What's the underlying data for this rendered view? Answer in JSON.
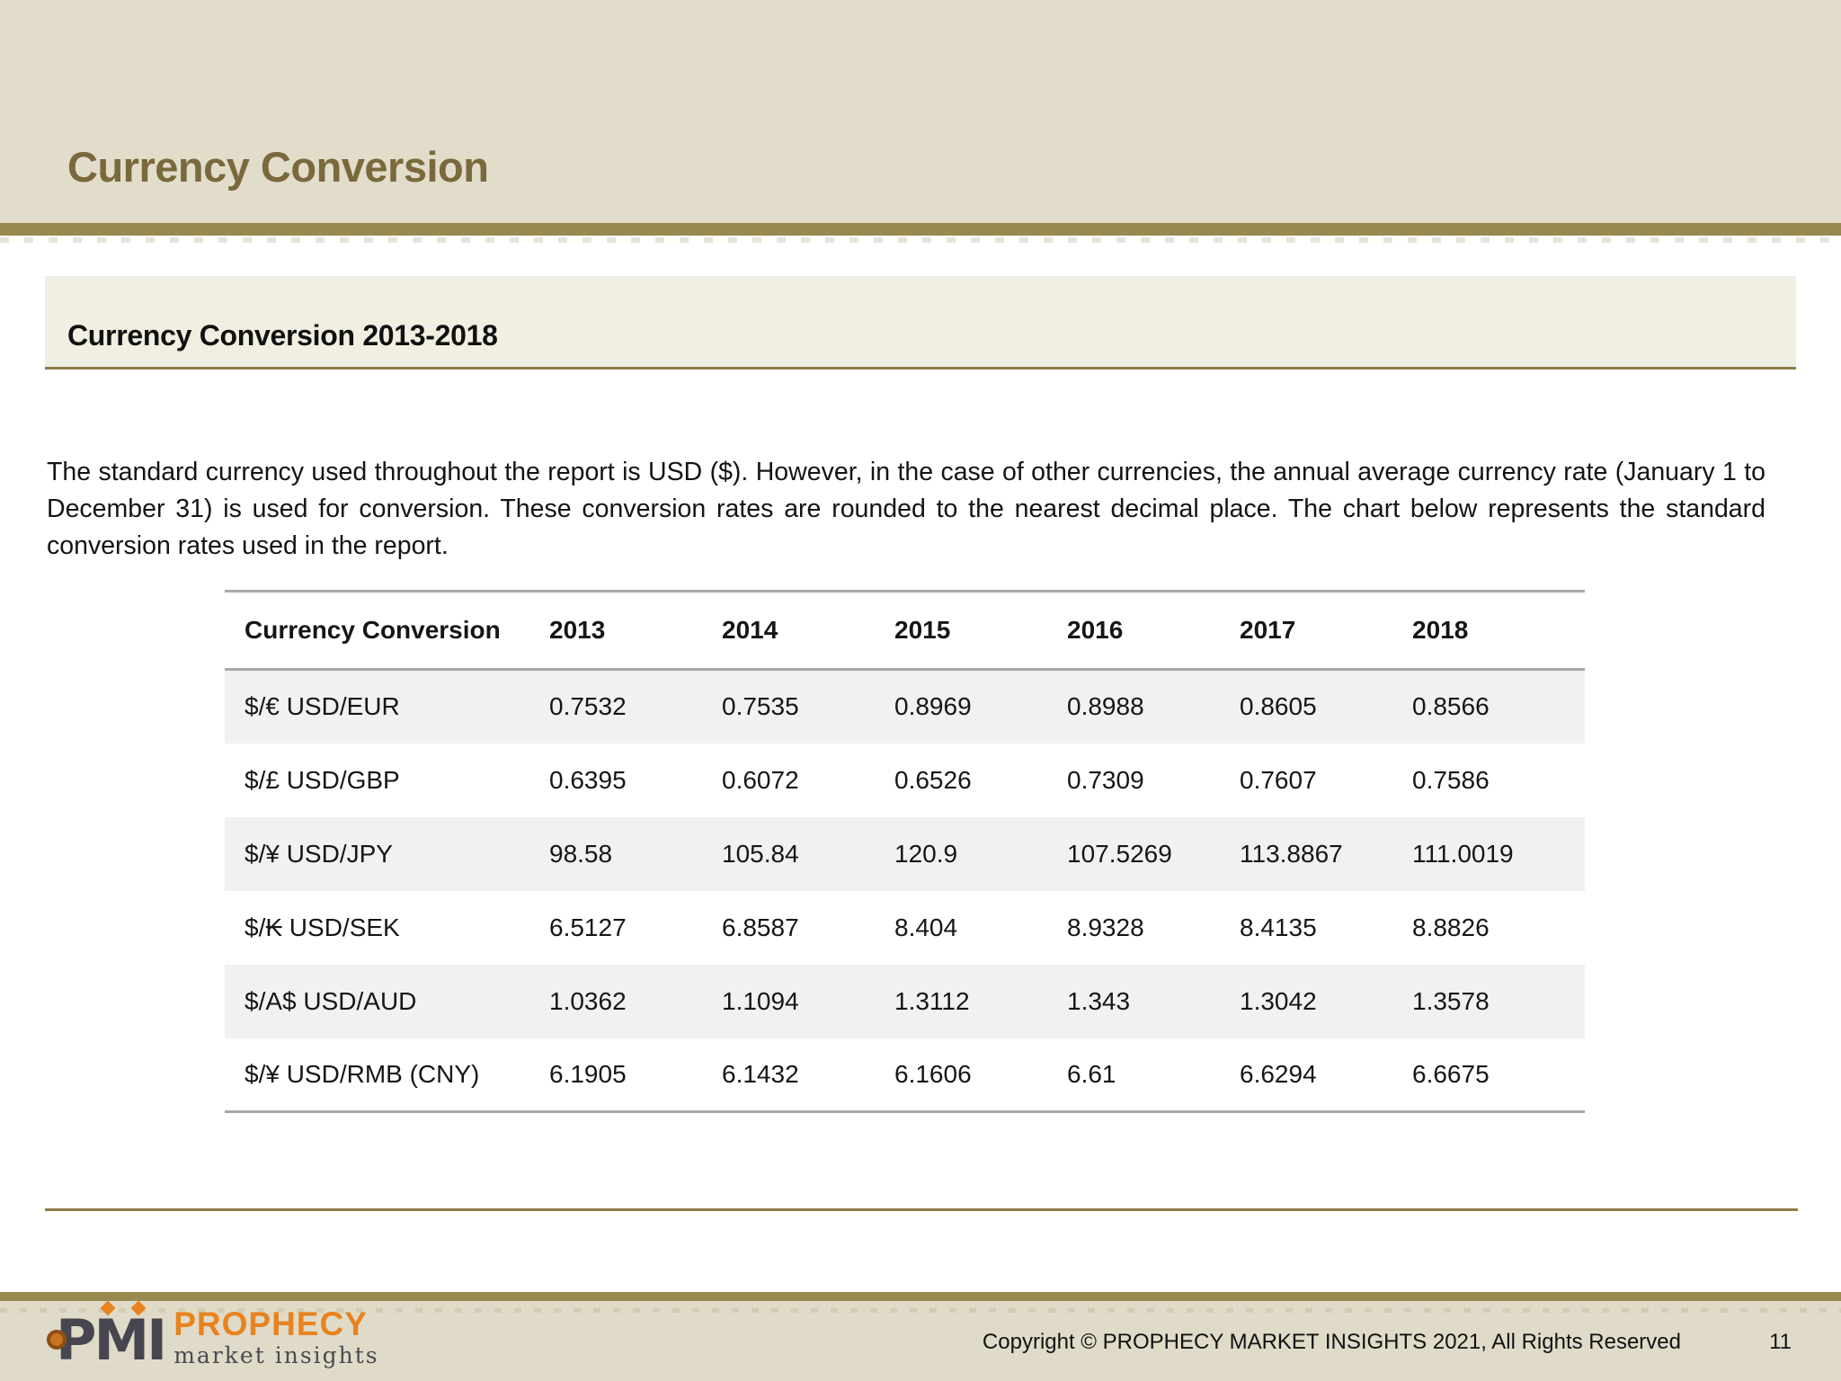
{
  "slide": {
    "title": "Currency Conversion",
    "section_title": "Currency Conversion 2013-2018",
    "paragraph": "The standard currency used throughout the report is USD ($). However, in the case of other currencies, the annual average currency rate (January 1 to December 31) is used for conversion. These conversion rates are rounded to the nearest decimal place. The chart below represents the standard conversion rates used in the report.",
    "page_number": "11"
  },
  "table": {
    "columns": [
      "Currency Conversion",
      "2013",
      "2014",
      "2015",
      "2016",
      "2017",
      "2018"
    ],
    "rows": [
      {
        "label": "$/€ USD/EUR",
        "values": [
          "0.7532",
          "0.7535",
          "0.8969",
          "0.8988",
          "0.8605",
          "0.8566"
        ]
      },
      {
        "label": "$/£ USD/GBP",
        "values": [
          "0.6395",
          "0.6072",
          "0.6526",
          "0.7309",
          "0.7607",
          "0.7586"
        ]
      },
      {
        "label": "$/¥ USD/JPY",
        "values": [
          "98.58",
          "105.84",
          "120.9",
          "107.5269",
          "113.8867",
          "111.0019"
        ]
      },
      {
        "label": "$/₭ USD/SEK",
        "values": [
          "6.5127",
          "6.8587",
          "8.404",
          "8.9328",
          "8.4135",
          "8.8826"
        ]
      },
      {
        "label": "$/A$ USD/AUD",
        "values": [
          "1.0362",
          "1.1094",
          "1.3112",
          "1.343",
          "1.3042",
          "1.3578"
        ]
      },
      {
        "label": "$/¥ USD/RMB (CNY)",
        "values": [
          "6.1905",
          "6.1432",
          "6.1606",
          "6.61",
          "6.6294",
          "6.6675"
        ]
      }
    ]
  },
  "footer": {
    "logo_mark": "PMI",
    "logo_name": "PROPHECY",
    "logo_tagline": "market insights",
    "copyright": "Copyright © PROPHECY MARKET INSIGHTS 2021, All Rights Reserved"
  },
  "colors": {
    "header_beige": "#e2ddca",
    "accent_olive": "#97894f",
    "rule_olive": "#8a7c49",
    "section_box": "#f1eee2",
    "title_text": "#79693d",
    "stripe_gray": "#f1f1f1",
    "table_border": "#a8a8a8",
    "footer_beige": "#e0dbc8",
    "logo_orange": "#e8831f",
    "logo_charcoal": "#474650"
  }
}
